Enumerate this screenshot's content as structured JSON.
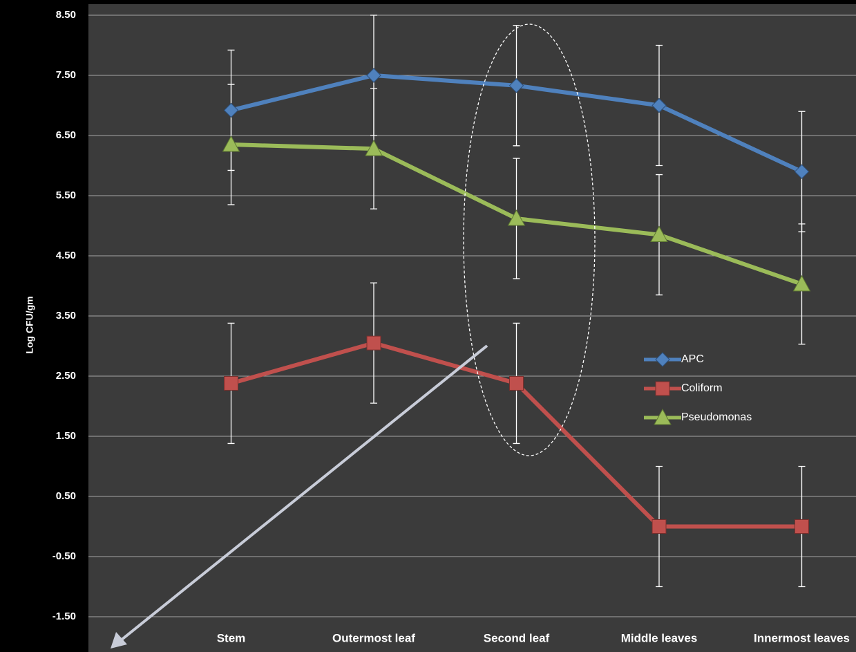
{
  "chart_data": {
    "type": "line",
    "y_label": "Log CFU/gm",
    "categories": [
      null,
      "Stem",
      "Outermost leaf",
      "Second  leaf",
      "Middle leaves",
      "Innermost leaves"
    ],
    "series": [
      {
        "name": "APC",
        "color": "#4f81bd",
        "marker": "diamond",
        "values": [
          null,
          6.92,
          7.5,
          7.33,
          7.0,
          5.9
        ],
        "errors": [
          null,
          1.0,
          1.0,
          1.0,
          1.0,
          1.0
        ]
      },
      {
        "name": "Coliform",
        "color": "#c0504d",
        "marker": "square",
        "values": [
          null,
          2.38,
          3.05,
          2.38,
          0.0,
          0.0
        ],
        "errors": [
          null,
          1.0,
          1.0,
          1.0,
          1.0,
          1.0
        ]
      },
      {
        "name": "Pseudomonas",
        "color": "#9bbb59",
        "marker": "triangle",
        "values": [
          null,
          6.35,
          6.28,
          5.12,
          4.85,
          4.03
        ],
        "errors": [
          null,
          1.0,
          1.0,
          1.0,
          1.0,
          1.0
        ]
      }
    ],
    "ylim": [
      -1.5,
      8.5
    ],
    "yticks": [
      {
        "value": -1.5,
        "label": "-1.50"
      },
      {
        "value": -0.5,
        "label": "-0.50"
      },
      {
        "value": 0.5,
        "label": "0.50"
      },
      {
        "value": 1.5,
        "label": "1.50"
      },
      {
        "value": 2.5,
        "label": "2.50"
      },
      {
        "value": 3.5,
        "label": "3.50"
      },
      {
        "value": 4.5,
        "label": "4.50"
      },
      {
        "value": 5.5,
        "label": "5.50"
      },
      {
        "value": 6.5,
        "label": "6.50"
      },
      {
        "value": 7.5,
        "label": "7.50"
      },
      {
        "value": 8.5,
        "label": "8.50"
      }
    ],
    "grid": true
  }
}
